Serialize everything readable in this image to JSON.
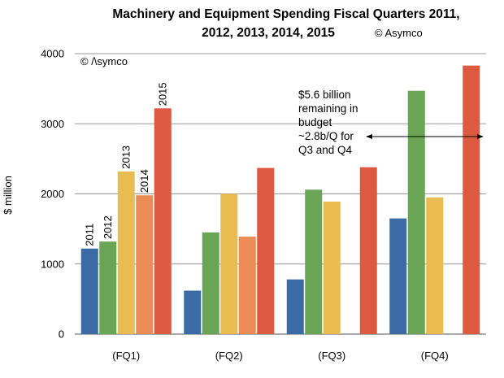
{
  "chart_data": {
    "type": "bar",
    "title": "Machinery and Equipment Spending Fiscal Quarters 2011, 2012, 2013, 2014, 2015",
    "title_lines": [
      "Machinery and Equipment Spending Fiscal Quarters 2011,",
      "2012, 2013, 2014, 2015"
    ],
    "credit_title": "© Asymco",
    "credit_plot": "© /\\symco",
    "xlabel": "",
    "ylabel": "$ million",
    "ylim": [
      0,
      4000
    ],
    "yticks": [
      0,
      1000,
      2000,
      3000,
      4000
    ],
    "categories": [
      "(FQ1)",
      "(FQ2)",
      "(FQ3)",
      "(FQ4)"
    ],
    "series": [
      {
        "name": "2011",
        "color": "#3b6ba5",
        "values": [
          1220,
          620,
          780,
          1650
        ]
      },
      {
        "name": "2012",
        "color": "#6aa455",
        "values": [
          1320,
          1450,
          2060,
          3470
        ]
      },
      {
        "name": "2013",
        "color": "#e8bc50",
        "values": [
          2320,
          2000,
          1890,
          1950
        ]
      },
      {
        "name": "2014",
        "color": "#ec8c55",
        "values": [
          1980,
          1390,
          null,
          null
        ]
      },
      {
        "name": "2015",
        "color": "#dd5a40",
        "values": [
          3220,
          2370,
          2380,
          3830
        ]
      }
    ],
    "legend": "series names written above first group of bars",
    "annotation": {
      "lines": [
        "$5.6 billion",
        "remaining in",
        "budget",
        "~2.8b/Q for",
        "Q3 and Q4"
      ]
    }
  }
}
